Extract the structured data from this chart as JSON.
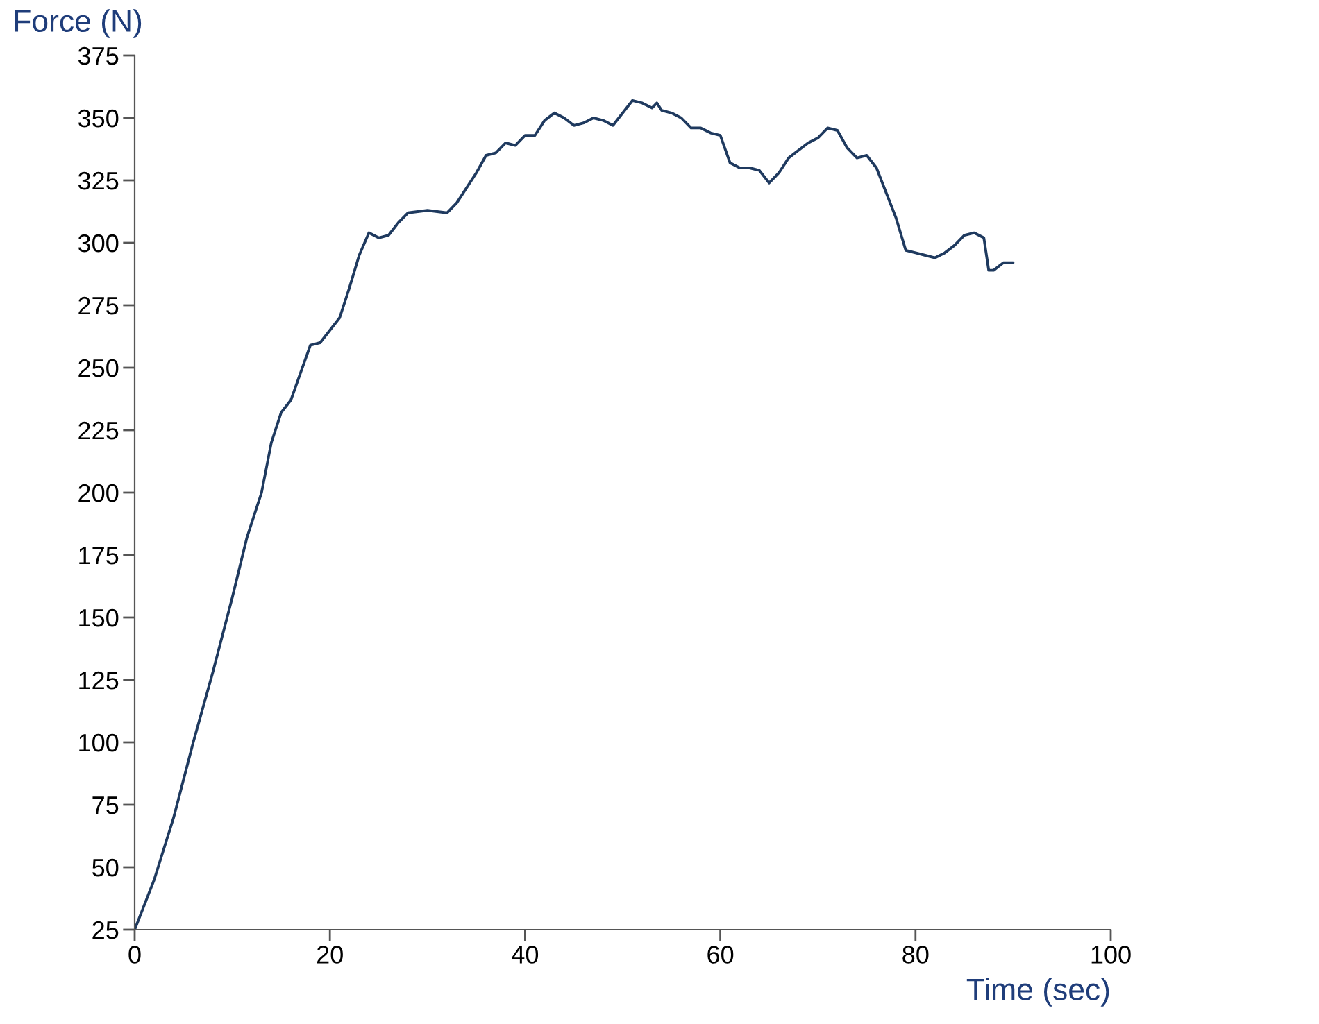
{
  "chart_data": {
    "type": "line",
    "xlabel": "Time (sec)",
    "ylabel": "Force (N)",
    "xlim": [
      0,
      100
    ],
    "xticks": [
      0,
      20,
      40,
      60,
      80,
      100
    ],
    "ylim": [
      25,
      375
    ],
    "yticks": [
      25,
      50,
      75,
      100,
      125,
      150,
      175,
      200,
      225,
      250,
      275,
      300,
      325,
      350,
      375
    ],
    "grid": false,
    "legend": false,
    "marker": "none",
    "line_style": "solid",
    "series": [
      {
        "color": "#1f3a5f",
        "x": [
          0,
          2,
          4,
          6,
          8,
          10,
          11.5,
          13,
          14,
          15,
          16,
          17,
          18,
          19,
          20,
          21,
          22,
          23,
          24,
          25,
          26,
          27,
          28,
          30,
          32,
          33,
          35,
          36,
          37,
          38,
          39,
          40,
          41,
          42,
          43,
          44,
          45,
          46,
          47,
          48,
          49,
          50,
          51,
          52,
          53,
          53.5,
          54,
          55,
          56,
          57,
          58,
          59,
          60,
          61,
          62,
          63,
          64,
          65,
          66,
          67,
          68,
          69,
          70,
          71,
          72,
          73,
          74,
          75,
          76,
          77,
          78,
          79,
          80,
          81,
          82,
          83,
          84,
          85,
          86,
          87,
          87.5,
          88,
          89,
          90
        ],
        "values": [
          25,
          45,
          70,
          100,
          128,
          158,
          182,
          200,
          220,
          232,
          237,
          248,
          259,
          260,
          265,
          270,
          282,
          295,
          304,
          302,
          303,
          308,
          312,
          313,
          312,
          316,
          328,
          335,
          336,
          340,
          339,
          343,
          343,
          349,
          352,
          350,
          347,
          348,
          350,
          349,
          347,
          352,
          357,
          356,
          354,
          356,
          353,
          352,
          350,
          346,
          346,
          344,
          343,
          332,
          330,
          330,
          329,
          324,
          328,
          334,
          337,
          340,
          342,
          346,
          345,
          338,
          334,
          335,
          330,
          320,
          310,
          297,
          296,
          295,
          294,
          296,
          299,
          303,
          304,
          302,
          289,
          289,
          292,
          292
        ]
      }
    ]
  }
}
